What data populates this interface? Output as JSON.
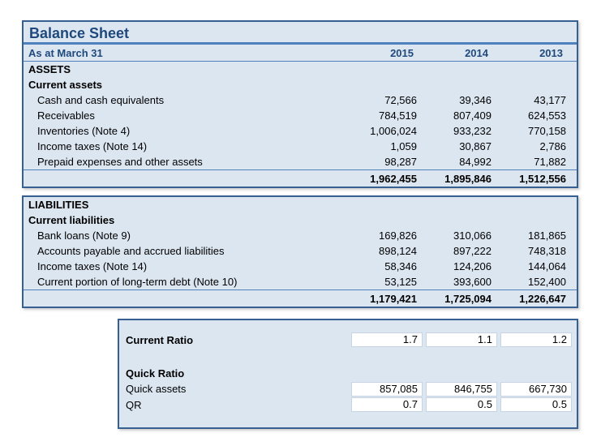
{
  "title": "Balance Sheet",
  "colors": {
    "accent_line": "#4f81bd",
    "heading_text": "#1f497d",
    "table_fill": "#dce6f1",
    "outer_border": "#376092",
    "cell_fill": "#ffffff"
  },
  "balance_sheet": {
    "header": {
      "label": "As at March 31",
      "years": [
        "2015",
        "2014",
        "2013"
      ]
    },
    "assets": {
      "section": "ASSETS",
      "subsection": "Current assets",
      "rows": [
        {
          "label": "Cash and cash equivalents",
          "values": [
            "72,566",
            "39,346",
            "43,177"
          ]
        },
        {
          "label": "Receivables",
          "values": [
            "784,519",
            "807,409",
            "624,553"
          ]
        },
        {
          "label": "Inventories (Note 4)",
          "values": [
            "1,006,024",
            "933,232",
            "770,158"
          ]
        },
        {
          "label": "Income taxes (Note 14)",
          "values": [
            "1,059",
            "30,867",
            "2,786"
          ]
        },
        {
          "label": "Prepaid expenses and other assets",
          "values": [
            "98,287",
            "84,992",
            "71,882"
          ]
        }
      ],
      "total": {
        "values": [
          "1,962,455",
          "1,895,846",
          "1,512,556"
        ]
      }
    },
    "liabilities": {
      "section": "LIABILITIES",
      "subsection": "Current liabilities",
      "rows": [
        {
          "label": "Bank loans (Note 9)",
          "values": [
            "169,826",
            "310,066",
            "181,865"
          ]
        },
        {
          "label": "Accounts payable and accrued liabilities",
          "values": [
            "898,124",
            "897,222",
            "748,318"
          ]
        },
        {
          "label": "Income taxes (Note 14)",
          "values": [
            "58,346",
            "124,206",
            "144,064"
          ]
        },
        {
          "label": "Current portion of long-term debt (Note 10)",
          "values": [
            "53,125",
            "393,600",
            "152,400"
          ]
        }
      ],
      "total": {
        "values": [
          "1,179,421",
          "1,725,094",
          "1,226,647"
        ]
      }
    }
  },
  "ratios": {
    "current_ratio": {
      "label": "Current Ratio",
      "values": [
        "1.7",
        "1.1",
        "1.2"
      ]
    },
    "quick_ratio_header": "Quick Ratio",
    "quick_assets": {
      "label": "Quick assets",
      "values": [
        "857,085",
        "846,755",
        "667,730"
      ]
    },
    "qr": {
      "label": "QR",
      "values": [
        "0.7",
        "0.5",
        "0.5"
      ]
    }
  }
}
